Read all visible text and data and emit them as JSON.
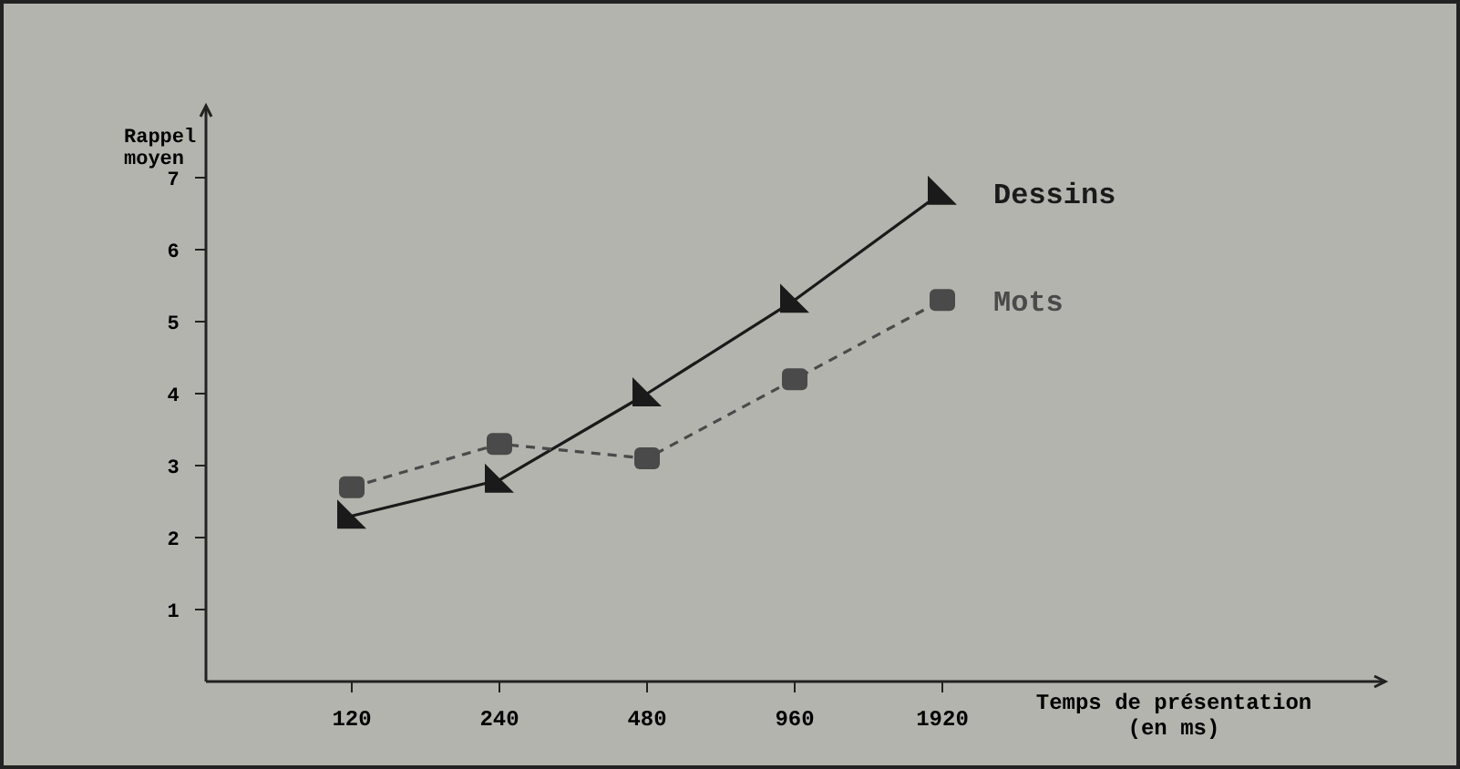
{
  "chart_data": {
    "type": "line",
    "ylabel": "Rappel moyen",
    "xlabel": "Temps de présentation (en ms)",
    "categories": [
      "120",
      "240",
      "480",
      "960",
      "1920"
    ],
    "ylim": [
      0,
      8
    ],
    "yticks": [
      1,
      2,
      3,
      4,
      5,
      6,
      7
    ],
    "grid": false,
    "series": [
      {
        "name": "Dessins",
        "color": "#1a1a1a",
        "marker": "triangle",
        "line_style": "solid",
        "values": [
          2.3,
          2.8,
          4.0,
          5.3,
          6.8
        ]
      },
      {
        "name": "Mots",
        "color": "#4a4a4a",
        "marker": "square",
        "line_style": "dashed",
        "values": [
          2.7,
          3.3,
          3.1,
          4.2,
          5.3
        ]
      }
    ]
  }
}
